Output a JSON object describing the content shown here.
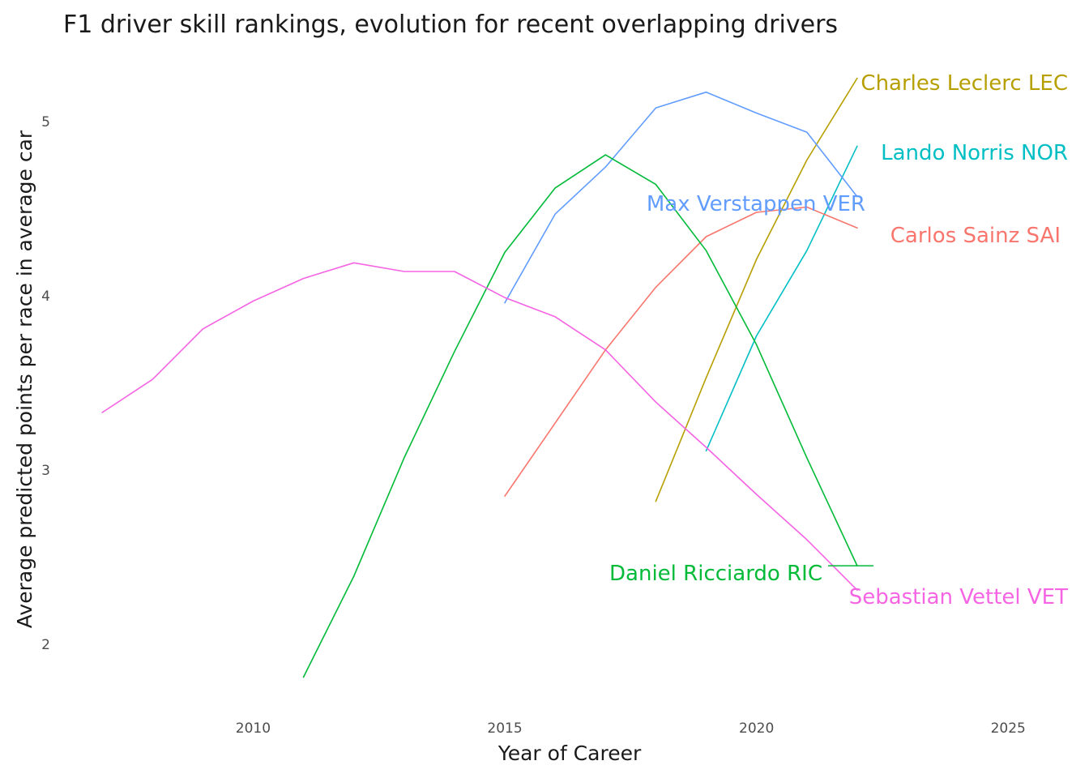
{
  "chart_data": {
    "type": "line",
    "title": "F1 driver skill rankings, evolution for recent overlapping drivers",
    "xlabel": "Year of Career",
    "ylabel": "Average predicted points per race in average car",
    "xlim": [
      2006.5,
      2026.3
    ],
    "ylim": [
      1.65,
      5.42
    ],
    "x_ticks": [
      2010,
      2015,
      2020,
      2025
    ],
    "y_ticks": [
      2,
      3,
      4,
      5
    ],
    "grid": false,
    "legend": "direct labels",
    "series": [
      {
        "name": "Charles Leclerc LEC",
        "color": "#B79F00",
        "x": [
          2018,
          2019,
          2020,
          2021,
          2022
        ],
        "y": [
          2.82,
          3.53,
          4.21,
          4.78,
          5.25
        ]
      },
      {
        "name": "Lando Norris NOR",
        "color": "#00BFC4",
        "x": [
          2019,
          2020,
          2021,
          2022
        ],
        "y": [
          3.11,
          3.77,
          4.26,
          4.86
        ]
      },
      {
        "name": "Max Verstappen VER",
        "color": "#619CFF",
        "x": [
          2015,
          2016,
          2017,
          2018,
          2019,
          2020,
          2021,
          2022
        ],
        "y": [
          3.96,
          4.47,
          4.74,
          5.08,
          5.17,
          5.05,
          4.94,
          4.57
        ]
      },
      {
        "name": "Carlos Sainz SAI",
        "color": "#F8766D",
        "x": [
          2015,
          2016,
          2017,
          2018,
          2019,
          2020,
          2021,
          2022
        ],
        "y": [
          2.85,
          3.27,
          3.69,
          4.05,
          4.34,
          4.48,
          4.51,
          4.39
        ]
      },
      {
        "name": "Daniel Ricciardo RIC",
        "color": "#00BA38",
        "x": [
          2011,
          2012,
          2013,
          2014,
          2015,
          2016,
          2017,
          2018,
          2019,
          2020,
          2021,
          2022
        ],
        "y": [
          1.81,
          2.39,
          3.07,
          3.68,
          4.25,
          4.62,
          4.81,
          4.64,
          4.26,
          3.72,
          3.07,
          2.45
        ],
        "label_connector_y": 2.45
      },
      {
        "name": "Sebastian Vettel VET",
        "color": "#F564E3",
        "x": [
          2007,
          2008,
          2009,
          2010,
          2011,
          2012,
          2013,
          2014,
          2015,
          2016,
          2017,
          2018,
          2019,
          2020,
          2021,
          2022
        ],
        "y": [
          3.33,
          3.52,
          3.81,
          3.97,
          4.1,
          4.19,
          4.14,
          4.14,
          3.99,
          3.88,
          3.69,
          3.39,
          3.13,
          2.86,
          2.6,
          2.31
        ]
      }
    ]
  }
}
